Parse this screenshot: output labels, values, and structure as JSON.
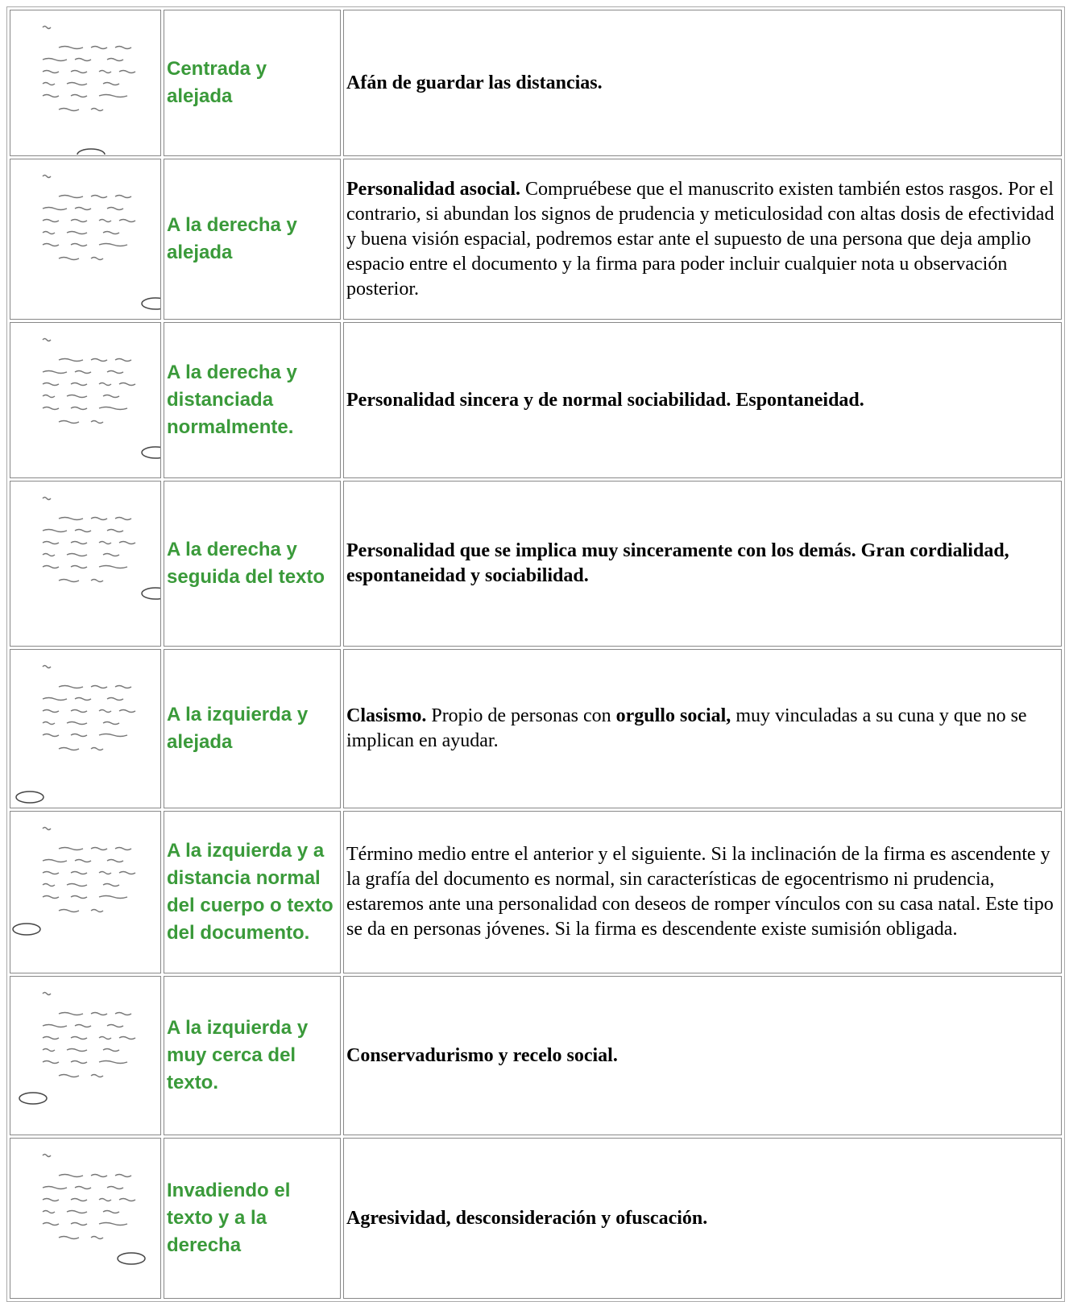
{
  "table": {
    "rows": [
      {
        "label": "Centrada y alejada",
        "description": [
          {
            "text": "Afán de guardar las distancias.",
            "bold": true
          }
        ]
      },
      {
        "label": "A la derecha y alejada",
        "description": [
          {
            "text": "Personalidad asocial.",
            "bold": true
          },
          {
            "text": " Compruébese que el manuscrito existen también estos rasgos. Por el contrario, si  abundan los signos de prudencia y meticulosidad con altas dosis de efectividad y buena visión espacial, podremos estar ante el supuesto de una persona que deja amplio espacio entre el documento y la firma para poder incluir cualquier nota u observación posterior.",
            "bold": false
          }
        ]
      },
      {
        "label": "A la derecha y distanciada normalmente.",
        "description": [
          {
            "text": "Personalidad sincera y de normal sociabilidad. Espontaneidad.",
            "bold": true
          }
        ]
      },
      {
        "label": "A la derecha y seguida del texto",
        "description": [
          {
            "text": "Personalidad que se implica muy sinceramente con los demás. Gran cordialidad, espontaneidad y sociabilidad.",
            "bold": true
          }
        ]
      },
      {
        "label": "A la izquierda y alejada",
        "description": [
          {
            "text": "Clasismo.",
            "bold": true
          },
          {
            "text": " Propio de personas con ",
            "bold": false
          },
          {
            "text": "orgullo social,",
            "bold": true
          },
          {
            "text": " muy vinculadas a su cuna y que no se implican en ayudar.",
            "bold": false
          }
        ]
      },
      {
        "label": "A la izquierda y a distancia normal del cuerpo o texto del documento.",
        "description": [
          {
            "text": "Término medio entre el anterior y el siguiente. Si la inclinación de la firma es ascendente y la grafía del documento es normal, sin características de egocentrismo ni prudencia,  estaremos ante una personalidad con deseos de romper vínculos con su casa natal. Este tipo se da en personas jóvenes. Si la firma es descendente existe sumisión obligada.",
            "bold": false
          }
        ]
      },
      {
        "label": "A la izquierda y muy cerca del texto.",
        "description": [
          {
            "text": "Conservadurismo y recelo social.",
            "bold": true
          }
        ]
      },
      {
        "label": "Invadiendo el texto y a la derecha",
        "description": [
          {
            "text": "Agresividad, desconsideración y ofuscación.",
            "bold": true
          }
        ]
      }
    ]
  }
}
